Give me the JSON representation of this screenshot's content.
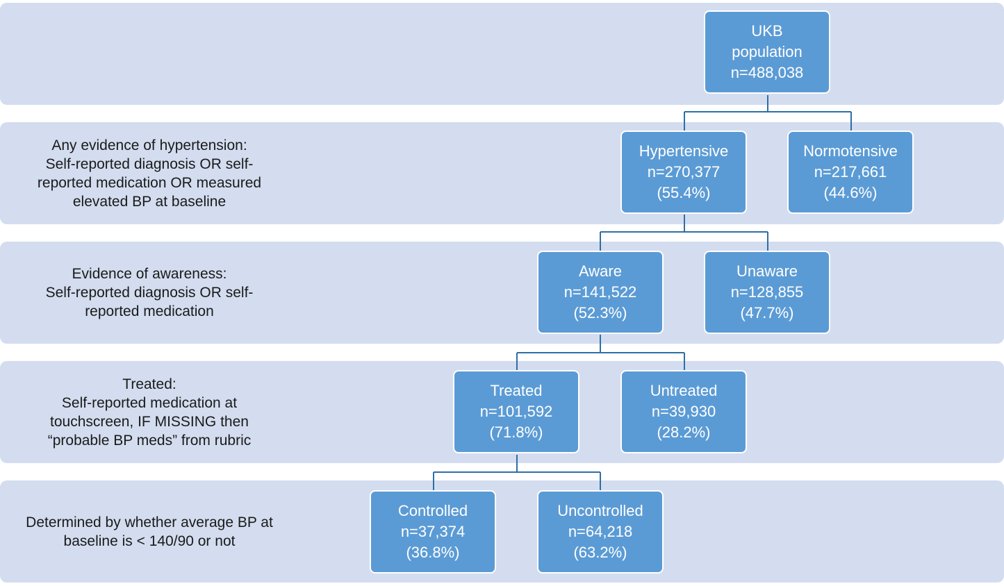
{
  "colors": {
    "band_fill": "#d3ddef",
    "node_fill": "#5b9bd5",
    "node_text": "#ffffff",
    "connector": "#2e6ea6"
  },
  "bands": [
    {
      "id": "population",
      "lines": []
    },
    {
      "id": "hypertension",
      "lines": [
        "Any evidence of hypertension:",
        "Self-reported diagnosis OR self-",
        "reported medication OR measured",
        "elevated BP at baseline"
      ]
    },
    {
      "id": "awareness",
      "lines": [
        "Evidence of awareness:",
        "Self-reported diagnosis OR self-",
        "reported medication"
      ]
    },
    {
      "id": "treated",
      "lines": [
        "Treated:",
        "Self-reported medication at",
        "touchscreen, IF MISSING then",
        "“probable BP meds” from rubric"
      ]
    },
    {
      "id": "control",
      "lines": [
        "Determined by whether average BP at",
        "baseline is < 140/90 or not"
      ]
    }
  ],
  "nodes": {
    "ukb": {
      "lines": [
        "UKB",
        "population",
        "n=488,038"
      ]
    },
    "hypertensive": {
      "lines": [
        "Hypertensive",
        "n=270,377",
        "(55.4%)"
      ]
    },
    "normotensive": {
      "lines": [
        "Normotensive",
        "n=217,661",
        "(44.6%)"
      ]
    },
    "aware": {
      "lines": [
        "Aware",
        "n=141,522",
        "(52.3%)"
      ]
    },
    "unaware": {
      "lines": [
        "Unaware",
        "n=128,855",
        "(47.7%)"
      ]
    },
    "treated": {
      "lines": [
        "Treated",
        "n=101,592",
        "(71.8%)"
      ]
    },
    "untreated": {
      "lines": [
        "Untreated",
        "n=39,930",
        "(28.2%)"
      ]
    },
    "controlled": {
      "lines": [
        "Controlled",
        "n=37,374",
        "(36.8%)"
      ]
    },
    "uncontrolled": {
      "lines": [
        "Uncontrolled",
        "n=64,218",
        "(63.2%)"
      ]
    }
  }
}
